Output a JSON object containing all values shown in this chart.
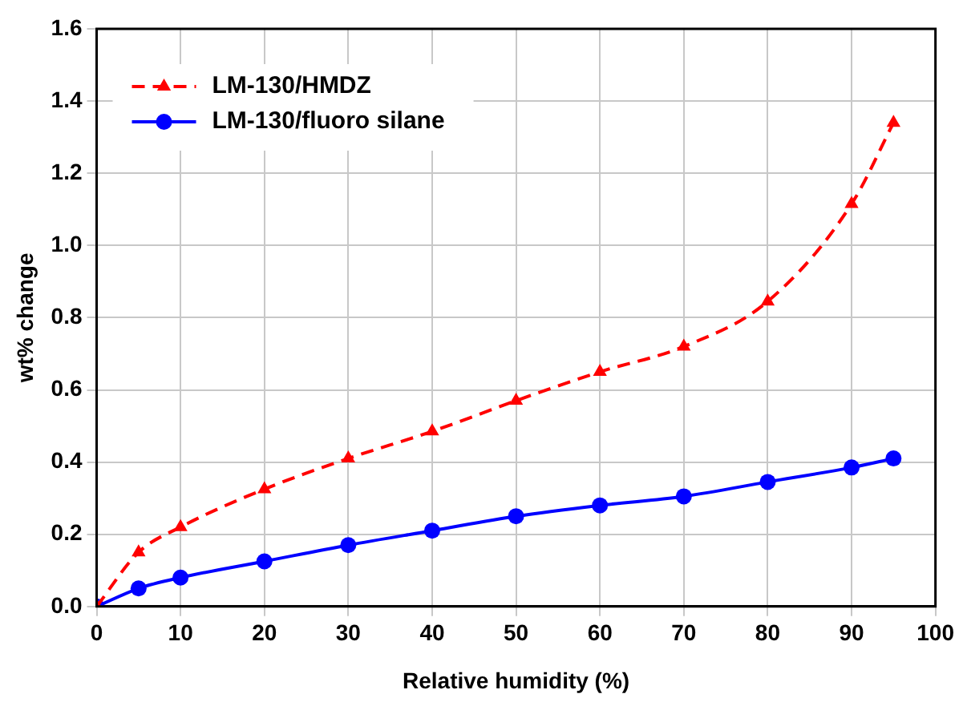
{
  "chart_data": {
    "type": "line",
    "xlabel": "Relative humidity (%)",
    "ylabel": "wt% change",
    "xlim": [
      0,
      100
    ],
    "xticks": [
      0,
      10,
      20,
      30,
      40,
      50,
      60,
      70,
      80,
      90,
      100
    ],
    "ylim": [
      0,
      1.6
    ],
    "yticks": [
      {
        "value": 0,
        "label": "0.0"
      },
      {
        "value": 0.2,
        "label": "0.2"
      },
      {
        "value": 0.4,
        "label": "0.4"
      },
      {
        "value": 0.6,
        "label": "0.6"
      },
      {
        "value": 0.8,
        "label": "0.8"
      },
      {
        "value": 1,
        "label": "1.0"
      },
      {
        "value": 1.2,
        "label": "1.2"
      },
      {
        "value": 1.4,
        "label": "1.4"
      },
      {
        "value": 1.6,
        "label": "1.6"
      }
    ],
    "grid": true,
    "legend": "top left",
    "x": [
      0,
      5,
      10,
      20,
      30,
      40,
      50,
      60,
      70,
      80,
      90,
      95
    ],
    "series": [
      {
        "name": "LM-130/HMDZ",
        "color": "#ff0000",
        "marker": "triangle",
        "line_style": "dashed",
        "values": [
          0,
          0.15,
          0.22,
          0.325,
          0.41,
          0.485,
          0.57,
          0.65,
          0.72,
          0.845,
          1.115,
          1.34
        ]
      },
      {
        "name": "LM-130/fluoro silane",
        "color": "#0000ff",
        "marker": "circle",
        "line_style": "solid",
        "values": [
          0,
          0.05,
          0.08,
          0.125,
          0.17,
          0.21,
          0.25,
          0.28,
          0.305,
          0.345,
          0.385,
          0.41
        ]
      }
    ]
  }
}
